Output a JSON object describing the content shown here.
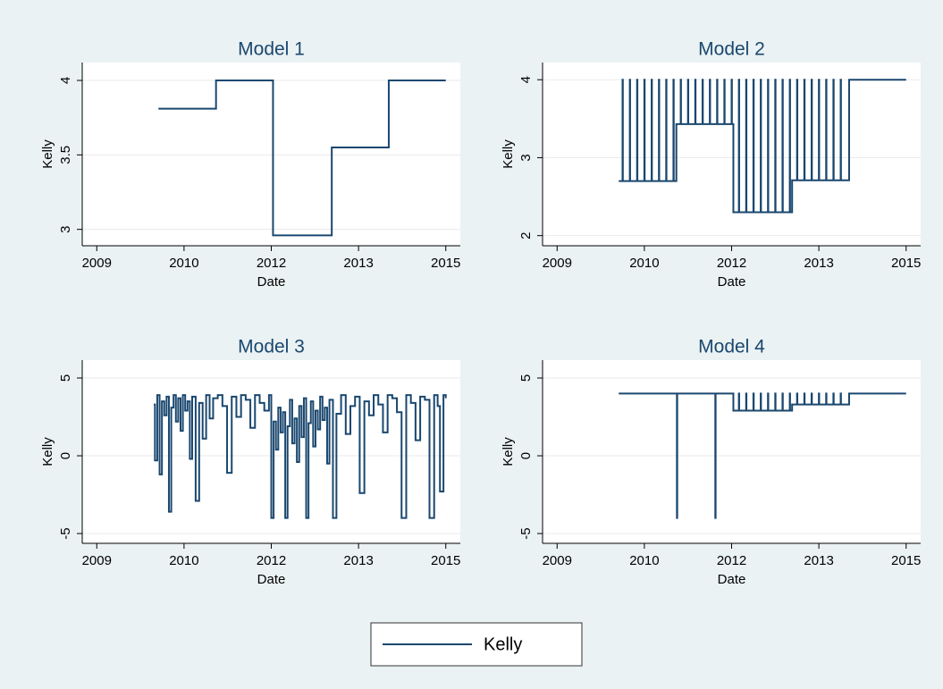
{
  "chart_data": [
    {
      "type": "line",
      "step": true,
      "title": "Model 1",
      "x_label": "Date",
      "y_label": "Kelly",
      "xlim": [
        2008.75,
        2015.25
      ],
      "xticks": [
        2009,
        {
          "value": 2010.5,
          "label": "2010"
        },
        2012,
        {
          "value": 2013.5,
          "label": "2013"
        },
        2015
      ],
      "ylim": [
        2.89,
        4.12
      ],
      "yticks": [
        3,
        3.5,
        4
      ],
      "grid": true,
      "series": [
        {
          "color": "#1a476f",
          "x": [
            2010.06,
            2011.05,
            2012.03,
            2013.04,
            2014.02,
            2015.0
          ],
          "values": [
            3.81,
            4,
            2.96,
            3.55,
            4,
            4
          ]
        }
      ]
    },
    {
      "type": "line",
      "step": true,
      "title": "Model 2",
      "x_label": "Date",
      "y_label": "Kelly",
      "xlim": [
        2008.75,
        2015.25
      ],
      "xticks": [
        2009,
        {
          "value": 2010.5,
          "label": "2010"
        },
        2012,
        {
          "value": 2013.5,
          "label": "2013"
        },
        2015
      ],
      "ylim": [
        1.87,
        4.22
      ],
      "yticks": [
        2,
        3,
        4
      ],
      "grid": true,
      "series": [
        {
          "color": "#1a476f",
          "x": [
            2010.06,
            2010.125,
            2010.13,
            2010.25,
            2010.255,
            2010.375,
            2010.38,
            2010.5,
            2010.505,
            2010.625,
            2010.63,
            2010.75,
            2010.755,
            2010.875,
            2010.88,
            2011.0,
            2011.005,
            2011.05,
            2011.125,
            2011.13,
            2011.25,
            2011.255,
            2011.375,
            2011.38,
            2011.5,
            2011.505,
            2011.625,
            2011.63,
            2011.75,
            2011.755,
            2011.875,
            2011.88,
            2012.0,
            2012.005,
            2012.03,
            2012.125,
            2012.13,
            2012.25,
            2012.255,
            2012.375,
            2012.38,
            2012.5,
            2012.505,
            2012.625,
            2012.63,
            2012.75,
            2012.755,
            2012.875,
            2012.88,
            2013.0,
            2013.005,
            2013.04,
            2013.125,
            2013.13,
            2013.25,
            2013.255,
            2013.375,
            2013.38,
            2013.5,
            2013.505,
            2013.625,
            2013.63,
            2013.75,
            2013.755,
            2013.875,
            2013.88,
            2014.02,
            2015.0
          ],
          "values": [
            2.7,
            4,
            2.7,
            4,
            2.7,
            4,
            2.7,
            4,
            2.7,
            4,
            2.7,
            4,
            2.7,
            4,
            2.7,
            4,
            2.7,
            3.43,
            4,
            3.43,
            4,
            3.43,
            4,
            3.43,
            4,
            3.43,
            4,
            3.43,
            4,
            3.43,
            4,
            3.43,
            4,
            3.43,
            2.3,
            4,
            2.3,
            4,
            2.3,
            4,
            2.3,
            4,
            2.3,
            4,
            2.3,
            4,
            2.3,
            4,
            2.3,
            4,
            2.3,
            2.71,
            4,
            2.71,
            4,
            2.71,
            4,
            2.71,
            4,
            2.71,
            4,
            2.71,
            4,
            2.71,
            4,
            2.71,
            4,
            4
          ]
        }
      ]
    },
    {
      "type": "line",
      "step": true,
      "title": "Model 3",
      "x_label": "Date",
      "y_label": "Kelly",
      "xlim": [
        2008.75,
        2015.25
      ],
      "xticks": [
        2009,
        {
          "value": 2010.5,
          "label": "2010"
        },
        2012,
        {
          "value": 2013.5,
          "label": "2013"
        },
        2015
      ],
      "ylim": [
        -5.63,
        6.15
      ],
      "yticks": [
        -5,
        0,
        5
      ],
      "grid": true,
      "series": [
        {
          "color": "#1a476f",
          "x": [
            2009.98,
            2010.0,
            2010.04,
            2010.08,
            2010.12,
            2010.16,
            2010.2,
            2010.24,
            2010.28,
            2010.32,
            2010.36,
            2010.4,
            2010.44,
            2010.48,
            2010.52,
            2010.56,
            2010.6,
            2010.64,
            2010.7,
            2010.76,
            2010.82,
            2010.88,
            2010.94,
            2011.0,
            2011.08,
            2011.16,
            2011.24,
            2011.32,
            2011.4,
            2011.48,
            2011.56,
            2011.64,
            2011.72,
            2011.8,
            2011.88,
            2011.96,
            2012.0,
            2012.04,
            2012.08,
            2012.12,
            2012.16,
            2012.2,
            2012.24,
            2012.28,
            2012.32,
            2012.36,
            2012.4,
            2012.44,
            2012.48,
            2012.52,
            2012.56,
            2012.6,
            2012.64,
            2012.68,
            2012.72,
            2012.76,
            2012.8,
            2012.84,
            2012.88,
            2012.92,
            2012.96,
            2013.0,
            2013.06,
            2013.12,
            2013.2,
            2013.28,
            2013.36,
            2013.44,
            2013.52,
            2013.6,
            2013.68,
            2013.76,
            2013.84,
            2013.92,
            2014.0,
            2014.08,
            2014.16,
            2014.24,
            2014.32,
            2014.4,
            2014.48,
            2014.56,
            2014.64,
            2014.72,
            2014.8,
            2014.86,
            2014.9,
            2014.96,
            2015.0
          ],
          "values": [
            3.3,
            -0.3,
            3.9,
            -1.2,
            3.5,
            2.6,
            3.8,
            -3.6,
            3.1,
            3.9,
            2.2,
            3.7,
            1.6,
            3.9,
            2.9,
            3.5,
            -0.2,
            3.8,
            -2.9,
            3.4,
            1.1,
            3.9,
            2.4,
            3.7,
            3.9,
            3.2,
            -1.1,
            3.8,
            2.5,
            3.9,
            3.6,
            1.8,
            3.9,
            3.4,
            2.9,
            3.9,
            -4,
            2.2,
            0.4,
            3.1,
            1.5,
            2.8,
            -4,
            1.9,
            3.6,
            0.8,
            2.4,
            -0.4,
            3.2,
            1.2,
            3.7,
            -4,
            2.1,
            3.5,
            0.6,
            2.9,
            1.7,
            3.8,
            2.3,
            3.1,
            -0.5,
            3.6,
            -4,
            2.7,
            3.9,
            1.4,
            3.2,
            3.8,
            -2.4,
            3.5,
            2.6,
            3.9,
            3.3,
            1.5,
            3.9,
            3.7,
            2.8,
            -4,
            3.9,
            3.4,
            1.0,
            3.8,
            3.6,
            -4,
            3.9,
            3.2,
            -2.3,
            3.9,
            3.7
          ]
        }
      ]
    },
    {
      "type": "line",
      "step": true,
      "title": "Model 4",
      "x_label": "Date",
      "y_label": "Kelly",
      "xlim": [
        2008.75,
        2015.25
      ],
      "xticks": [
        2009,
        {
          "value": 2010.5,
          "label": "2010"
        },
        2012,
        {
          "value": 2013.5,
          "label": "2013"
        },
        2015
      ],
      "ylim": [
        -5.63,
        6.15
      ],
      "yticks": [
        -5,
        0,
        5
      ],
      "grid": true,
      "series": [
        {
          "color": "#1a476f",
          "x": [
            2010.06,
            2011.06,
            2011.065,
            2011.72,
            2011.725,
            2012.03,
            2012.125,
            2012.13,
            2012.25,
            2012.255,
            2012.375,
            2012.38,
            2012.5,
            2012.505,
            2012.625,
            2012.63,
            2012.75,
            2012.755,
            2012.875,
            2012.88,
            2013.0,
            2013.005,
            2013.04,
            2013.125,
            2013.13,
            2013.25,
            2013.255,
            2013.375,
            2013.38,
            2013.5,
            2013.505,
            2013.625,
            2013.63,
            2013.75,
            2013.755,
            2013.875,
            2013.88,
            2014.02,
            2015.0
          ],
          "values": [
            4,
            -4,
            4,
            -4,
            4,
            2.9,
            4,
            2.9,
            4,
            2.9,
            4,
            2.9,
            4,
            2.9,
            4,
            2.9,
            4,
            2.9,
            4,
            2.9,
            4,
            2.9,
            3.3,
            4,
            3.3,
            4,
            3.3,
            4,
            3.3,
            4,
            3.3,
            4,
            3.3,
            4,
            3.3,
            4,
            3.3,
            4,
            4
          ]
        }
      ]
    }
  ],
  "legend": {
    "label": "Kelly",
    "color": "#1a476f"
  }
}
